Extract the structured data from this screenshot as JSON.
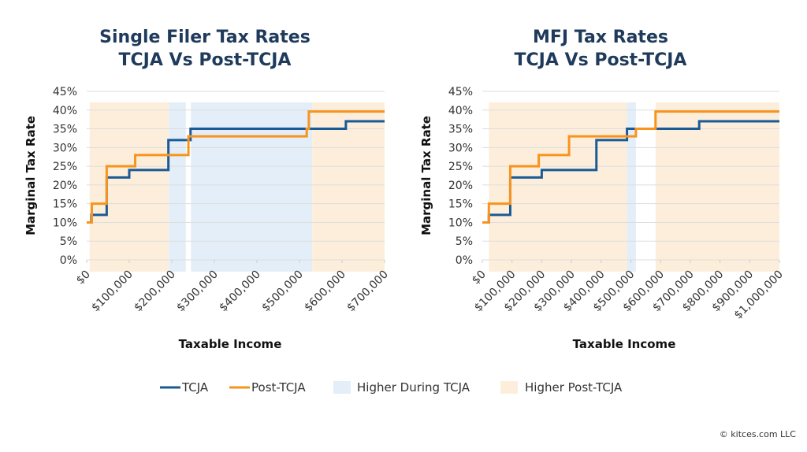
{
  "colors": {
    "tcja": "#1a5a96",
    "post": "#f7941d",
    "shade_tcja": "#e4eef8",
    "shade_post": "#fdeedc",
    "title": "#1f3b5c",
    "grid": "#dddddd"
  },
  "legend": {
    "tcja": "TCJA",
    "post": "Post-TCJA",
    "shade_tcja": "Higher During TCJA",
    "shade_post": "Higher Post-TCJA"
  },
  "copyright": "© kitces.com LLC",
  "chart_data": [
    {
      "type": "line",
      "title": [
        "Single Filer Tax Rates",
        "TCJA Vs Post-TCJA"
      ],
      "xlabel": "Taxable Income",
      "ylabel": "Marginal Tax Rate",
      "xlim": [
        0,
        700000
      ],
      "ylim": [
        0,
        45
      ],
      "x_ticks": [
        "$0",
        "$100,000",
        "$200,000",
        "$300,000",
        "$400,000",
        "$500,000",
        "$600,000",
        "$700,000"
      ],
      "y_ticks": [
        "0%",
        "5%",
        "10%",
        "15%",
        "20%",
        "25%",
        "30%",
        "35%",
        "40%",
        "45%"
      ],
      "grid": true,
      "series": [
        {
          "name": "TCJA",
          "steps": [
            [
              0,
              11000,
              10
            ],
            [
              11000,
              47000,
              12
            ],
            [
              47000,
              100000,
              22
            ],
            [
              100000,
              192000,
              24
            ],
            [
              192000,
              244000,
              32
            ],
            [
              244000,
              609000,
              35
            ],
            [
              609000,
              700000,
              37
            ]
          ]
        },
        {
          "name": "Post-TCJA",
          "steps": [
            [
              0,
              12000,
              10
            ],
            [
              12000,
              47000,
              15
            ],
            [
              47000,
              114000,
              25
            ],
            [
              114000,
              239000,
              28
            ],
            [
              239000,
              517000,
              33
            ],
            [
              517000,
              522000,
              35
            ],
            [
              522000,
              700000,
              39.6
            ]
          ]
        }
      ],
      "shading": [
        {
          "series": "Higher Post-TCJA",
          "from": 7000,
          "to": 193000
        },
        {
          "series": "Higher During TCJA",
          "from": 193000,
          "to": 233000
        },
        {
          "series": "Higher During TCJA",
          "from": 245000,
          "to": 530000
        },
        {
          "series": "Higher Post-TCJA",
          "from": 530000,
          "to": 700000
        }
      ]
    },
    {
      "type": "line",
      "title": [
        "MFJ Tax Rates",
        "TCJA Vs Post-TCJA"
      ],
      "xlabel": "Taxable Income",
      "ylabel": "Marginal Tax Rate",
      "xlim": [
        0,
        1000000
      ],
      "ylim": [
        0,
        45
      ],
      "x_ticks": [
        "$0",
        "$100,000",
        "$200,000",
        "$300,000",
        "$400,000",
        "$500,000",
        "$600,000",
        "$700,000",
        "$800,000",
        "$900,000",
        "$1,000,000"
      ],
      "y_ticks": [
        "0%",
        "5%",
        "10%",
        "15%",
        "20%",
        "25%",
        "30%",
        "35%",
        "40%",
        "45%"
      ],
      "grid": true,
      "series": [
        {
          "name": "TCJA",
          "steps": [
            [
              0,
              22000,
              10
            ],
            [
              22000,
              94000,
              12
            ],
            [
              94000,
              200000,
              22
            ],
            [
              200000,
              384000,
              24
            ],
            [
              384000,
              487000,
              32
            ],
            [
              487000,
              730000,
              35
            ],
            [
              730000,
              1000000,
              37
            ]
          ]
        },
        {
          "name": "Post-TCJA",
          "steps": [
            [
              0,
              22000,
              10
            ],
            [
              22000,
              94000,
              15
            ],
            [
              94000,
              190000,
              25
            ],
            [
              190000,
              292000,
              28
            ],
            [
              292000,
              517000,
              33
            ],
            [
              517000,
              583000,
              35
            ],
            [
              583000,
              1000000,
              39.6
            ]
          ]
        }
      ],
      "shading": [
        {
          "series": "Higher Post-TCJA",
          "from": 22000,
          "to": 487000
        },
        {
          "series": "Higher During TCJA",
          "from": 487000,
          "to": 517000
        },
        {
          "series": "Higher Post-TCJA",
          "from": 583000,
          "to": 1000000
        }
      ]
    }
  ]
}
